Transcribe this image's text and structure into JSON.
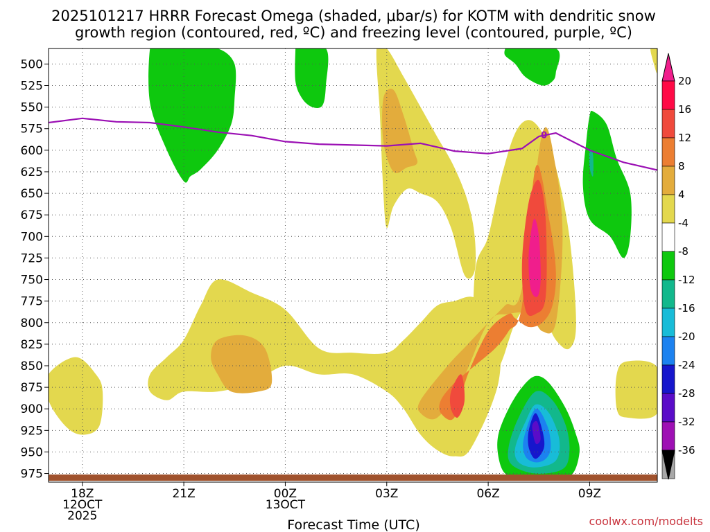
{
  "chart_data": {
    "type": "heatmap",
    "title_line1": "2025101217 HRRR Forecast Omega (shaded, μbar/s) for KOTM with dendritic snow",
    "title_line2": "growth region (contoured, red, ºC) and freezing level (contoured, purple, ºC)",
    "xlabel": "Forecast Time (UTC)",
    "credit": "coolwx.com/modelts",
    "x_unit": "forecast hour",
    "xlim": [
      0,
      18
    ],
    "ylim": [
      985,
      482
    ],
    "y_ticks": [
      500,
      525,
      550,
      575,
      600,
      625,
      650,
      675,
      700,
      725,
      750,
      775,
      800,
      825,
      850,
      875,
      900,
      925,
      950,
      975
    ],
    "x_ticks": [
      {
        "hour": 1,
        "lines": [
          "18Z",
          "12OCT",
          "2025"
        ]
      },
      {
        "hour": 4,
        "lines": [
          "21Z"
        ]
      },
      {
        "hour": 7,
        "lines": [
          "00Z",
          "13OCT"
        ]
      },
      {
        "hour": 10,
        "lines": [
          "03Z"
        ]
      },
      {
        "hour": 13,
        "lines": [
          "06Z"
        ]
      },
      {
        "hour": 16,
        "lines": [
          "09Z"
        ]
      }
    ],
    "colorbar": {
      "levels": [
        20,
        16,
        12,
        8,
        4,
        -4,
        -8,
        -12,
        -16,
        -20,
        -24,
        -28,
        -32,
        -36
      ],
      "colors": [
        "#ff0a46",
        "#f04a3c",
        "#ec7e32",
        "#e3ac3c",
        "#e3d84e",
        "#ffffff",
        "#0ec80e",
        "#12b88c",
        "#18bcd8",
        "#1c82f0",
        "#1616cc",
        "#5a0cc8",
        "#9e10b4",
        "#a8a8a8"
      ],
      "top_color": "#f01e8c",
      "bottom_color": "#000000"
    },
    "freezing_level": {
      "label": "0",
      "color": "#9b10b4",
      "hours": [
        0,
        1,
        2,
        3,
        4,
        5,
        6,
        7,
        8,
        9,
        10,
        11,
        12,
        13,
        14,
        14.5,
        15,
        16,
        17,
        18
      ],
      "pressure": [
        568,
        563,
        567,
        568,
        573,
        579,
        583,
        590,
        593,
        594,
        595,
        592,
        601,
        604,
        598,
        584,
        580,
        600,
        614,
        623
      ]
    },
    "ground_color": "#a0522d",
    "omega_regions": [
      {
        "value": "-4..-8",
        "color": "#0ec80e",
        "hours": [
          3,
          3.2,
          4.2,
          5,
          5.5,
          5.5,
          5.4,
          5,
          4.5,
          4.2,
          4,
          3.5,
          3
        ],
        "pressure": [
          482,
          482,
          482,
          482,
          500,
          540,
          570,
          600,
          622,
          630,
          636,
          600,
          545
        ]
      },
      {
        "value": "-4..-8",
        "color": "#0ec80e",
        "hours": [
          7.3,
          7.3,
          8.2,
          8.2,
          8.1,
          7.8,
          7.5,
          7.3
        ],
        "pressure": [
          482,
          482,
          482,
          525,
          548,
          550,
          540,
          520
        ]
      },
      {
        "value": "-4..-8",
        "color": "#0ec80e",
        "hours": [
          13.5,
          13.5,
          15,
          15,
          14.9,
          14.6,
          14.1,
          13.8,
          13.5
        ],
        "pressure": [
          482,
          482,
          482,
          510,
          520,
          525,
          515,
          500,
          490
        ]
      },
      {
        "value": "-4..-8",
        "color": "#0ec80e",
        "hours": [
          16,
          16.1,
          16.5,
          16.8,
          17.2,
          17.2,
          17,
          16.6,
          16,
          15.8,
          15.9
        ],
        "pressure": [
          560,
          555,
          570,
          610,
          650,
          700,
          725,
          700,
          680,
          640,
          590
        ]
      },
      {
        "value": "-8..-12",
        "color": "#12b88c",
        "hours": [
          16,
          16.1,
          16.1,
          16
        ],
        "pressure": [
          600,
          605,
          630,
          620
        ]
      },
      {
        "value": "4..8",
        "color": "#e3d84e",
        "hours": [
          9.7,
          10,
          10.5,
          11,
          11.5,
          12,
          12.4,
          12.6,
          12.6,
          12.3,
          11.9,
          11.5,
          11,
          10.6,
          10.2,
          10,
          9.9,
          9.8
        ],
        "pressure": [
          482,
          482,
          515,
          550,
          585,
          620,
          660,
          700,
          740,
          745,
          690,
          660,
          650,
          645,
          665,
          690,
          650,
          560
        ]
      },
      {
        "value": "4..8",
        "color": "#e3d84e",
        "hours": [
          12.6,
          13,
          13.4,
          13.8,
          14.2,
          14.6,
          15,
          15.4,
          15.6,
          15.4,
          15,
          14.6,
          14.2,
          13.8,
          13.4,
          13,
          12.6
        ],
        "pressure": [
          745,
          700,
          630,
          580,
          565,
          580,
          620,
          700,
          800,
          830,
          820,
          790,
          780,
          800,
          845,
          875,
          880
        ]
      },
      {
        "value": "4..8",
        "color": "#e3d84e",
        "hours": [
          3,
          3.5,
          4,
          4.5,
          5,
          6,
          7,
          8,
          9,
          10,
          10.5,
          11,
          11.5,
          12,
          12.5,
          13,
          13.3,
          13.3,
          12.5,
          12,
          11.5,
          11,
          10.5,
          10,
          9,
          8,
          7,
          6,
          5,
          4,
          3.5,
          3
        ],
        "pressure": [
          860,
          840,
          820,
          780,
          750,
          765,
          785,
          830,
          835,
          835,
          820,
          800,
          780,
          775,
          770,
          780,
          800,
          870,
          945,
          955,
          948,
          930,
          900,
          880,
          860,
          860,
          850,
          870,
          880,
          880,
          890,
          880
        ]
      },
      {
        "value": "4..8",
        "color": "#e3d84e",
        "hours": [
          0,
          0.8,
          1.4,
          1.6,
          1.5,
          1,
          0.5,
          0
        ],
        "pressure": [
          860,
          840,
          860,
          880,
          920,
          930,
          920,
          890
        ]
      },
      {
        "value": "4..8",
        "color": "#e3d84e",
        "hours": [
          16.8,
          17.1,
          18,
          18,
          17.1,
          16.8
        ],
        "pressure": [
          860,
          845,
          852,
          905,
          910,
          900
        ]
      },
      {
        "value": "4..8",
        "color": "#e3d84e",
        "hours": [
          17.8,
          18,
          18,
          17.9
        ],
        "pressure": [
          482,
          482,
          510,
          500
        ]
      },
      {
        "value": "8..12",
        "color": "#e3ac3c",
        "hours": [
          9.9,
          10.2,
          10.5,
          10.8,
          10.9,
          10.6,
          10.2,
          9.9
        ],
        "pressure": [
          540,
          530,
          560,
          600,
          615,
          620,
          625,
          590
        ]
      },
      {
        "value": "8..12",
        "color": "#e3ac3c",
        "hours": [
          11,
          11.8,
          12.4,
          13,
          13.5,
          14,
          14.6,
          15,
          15.2,
          15,
          14.6,
          14.2,
          13.6,
          13,
          12.2,
          11.5,
          11
        ],
        "pressure": [
          890,
          850,
          825,
          800,
          780,
          760,
          580,
          620,
          700,
          800,
          810,
          790,
          790,
          800,
          870,
          910,
          905
        ]
      },
      {
        "value": "8..12",
        "color": "#e3ac3c",
        "hours": [
          5,
          5.8,
          6.4,
          6.6,
          6.2,
          5.4,
          5,
          4.8
        ],
        "pressure": [
          820,
          815,
          830,
          870,
          880,
          880,
          860,
          840
        ]
      },
      {
        "value": "12..16",
        "color": "#ec7e32",
        "hours": [
          11.6,
          12,
          12.6,
          13.2,
          13.6,
          14,
          14.4,
          14.8,
          15,
          14.9,
          14.6,
          14.2,
          13.8,
          13.6,
          13,
          12.4,
          12,
          11.6
        ],
        "pressure": [
          890,
          870,
          850,
          830,
          810,
          780,
          620,
          680,
          740,
          780,
          800,
          805,
          795,
          790,
          810,
          860,
          910,
          905
        ]
      },
      {
        "value": "16..20",
        "color": "#f04a3c",
        "hours": [
          14,
          14.2,
          14.5,
          14.7,
          14.7,
          14.4,
          14.1
        ],
        "pressure": [
          730,
          660,
          635,
          680,
          770,
          790,
          785
        ]
      },
      {
        "value": "16..20",
        "color": "#f04a3c",
        "hours": [
          11.9,
          12.2,
          12.3,
          12.1,
          11.9
        ],
        "pressure": [
          880,
          860,
          890,
          910,
          900
        ]
      },
      {
        "value": ">20",
        "color": "#f01e8c",
        "hours": [
          14.2,
          14.35,
          14.5,
          14.55,
          14.45,
          14.25
        ],
        "pressure": [
          720,
          680,
          700,
          750,
          770,
          760
        ]
      },
      {
        "value": "-4..-8",
        "color": "#0ec80e",
        "hours": [
          13.3,
          13.6,
          14,
          14.4,
          14.8,
          15.3,
          15.6,
          15.7,
          15.5,
          15,
          14.5,
          14,
          13.5,
          13.3
        ],
        "pressure": [
          930,
          900,
          875,
          862,
          870,
          900,
          930,
          950,
          975,
          982,
          982,
          982,
          975,
          955
        ]
      },
      {
        "value": "-8..-12",
        "color": "#12b88c",
        "hours": [
          13.6,
          13.9,
          14.4,
          14.9,
          15.3,
          15.4,
          15.2,
          14.4,
          13.7
        ],
        "pressure": [
          945,
          910,
          880,
          890,
          920,
          950,
          970,
          975,
          965
        ]
      },
      {
        "value": "-12..-16",
        "color": "#18bcd8",
        "hours": [
          13.8,
          14.1,
          14.4,
          14.8,
          15.1,
          15,
          14.4,
          13.9
        ],
        "pressure": [
          945,
          915,
          895,
          905,
          935,
          960,
          968,
          962
        ]
      },
      {
        "value": "-16..-20",
        "color": "#1c82f0",
        "hours": [
          14.05,
          14.4,
          14.75,
          14.85,
          14.7,
          14.4,
          14.1
        ],
        "pressure": [
          935,
          900,
          920,
          945,
          958,
          962,
          955
        ]
      },
      {
        "value": "-20..-24",
        "color": "#1616cc",
        "hours": [
          14.2,
          14.4,
          14.6,
          14.65,
          14.4,
          14.2
        ],
        "pressure": [
          925,
          905,
          925,
          945,
          958,
          945
        ]
      },
      {
        "value": "-24..-28",
        "color": "#5a0cc8",
        "hours": [
          14.3,
          14.45,
          14.55,
          14.4
        ],
        "pressure": [
          920,
          915,
          935,
          940
        ]
      }
    ]
  }
}
